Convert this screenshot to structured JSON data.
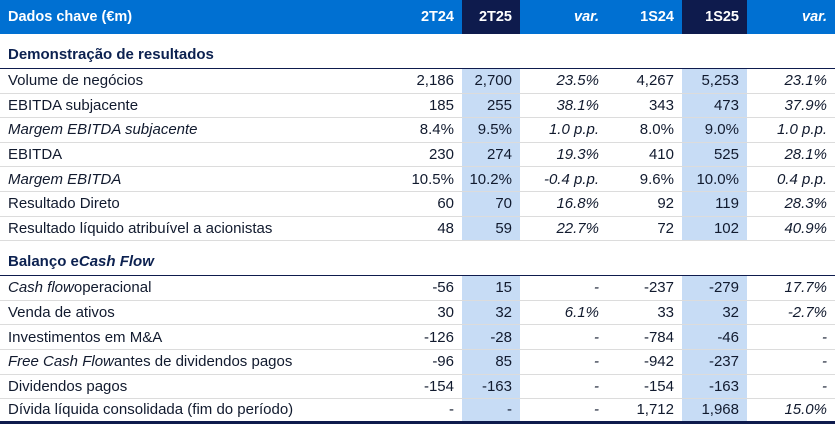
{
  "table": {
    "header": {
      "label": "Dados chave (€m)",
      "columns": [
        "2T24",
        "2T25",
        "var.",
        "1S24",
        "1S25",
        "var."
      ]
    },
    "sections": [
      {
        "title": [
          {
            "text": "Demonstração de resultados",
            "italic": false
          }
        ],
        "rows": [
          {
            "label": [
              {
                "text": "Volume de negócios",
                "italic": false
              }
            ],
            "values": [
              "2,186",
              "2,700",
              "23.5%",
              "4,267",
              "5,253",
              "23.1%"
            ]
          },
          {
            "label": [
              {
                "text": "EBITDA subjacente",
                "italic": false
              }
            ],
            "values": [
              "185",
              "255",
              "38.1%",
              "343",
              "473",
              "37.9%"
            ]
          },
          {
            "label": [
              {
                "text": "Margem EBITDA subjacente",
                "italic": true
              }
            ],
            "values": [
              "8.4%",
              "9.5%",
              "1.0 p.p.",
              "8.0%",
              "9.0%",
              "1.0 p.p."
            ]
          },
          {
            "label": [
              {
                "text": "EBITDA",
                "italic": false
              }
            ],
            "values": [
              "230",
              "274",
              "19.3%",
              "410",
              "525",
              "28.1%"
            ]
          },
          {
            "label": [
              {
                "text": "Margem EBITDA",
                "italic": true
              }
            ],
            "values": [
              "10.5%",
              "10.2%",
              "-0.4 p.p.",
              "9.6%",
              "10.0%",
              "0.4 p.p."
            ]
          },
          {
            "label": [
              {
                "text": "Resultado Direto",
                "italic": false
              }
            ],
            "values": [
              "60",
              "70",
              "16.8%",
              "92",
              "119",
              "28.3%"
            ]
          },
          {
            "label": [
              {
                "text": "Resultado líquido atribuível a acionistas",
                "italic": false
              }
            ],
            "values": [
              "48",
              "59",
              "22.7%",
              "72",
              "102",
              "40.9%"
            ]
          }
        ]
      },
      {
        "title": [
          {
            "text": "Balanço e ",
            "italic": false
          },
          {
            "text": "Cash Flow",
            "italic": true
          }
        ],
        "rows": [
          {
            "label": [
              {
                "text": "Cash flow",
                "italic": true
              },
              {
                "text": " operacional",
                "italic": false
              }
            ],
            "values": [
              "-56",
              "15",
              "-",
              "-237",
              "-279",
              "17.7%"
            ]
          },
          {
            "label": [
              {
                "text": "Venda de ativos",
                "italic": false
              }
            ],
            "values": [
              "30",
              "32",
              "6.1%",
              "33",
              "32",
              "-2.7%"
            ]
          },
          {
            "label": [
              {
                "text": "Investimentos em M&A",
                "italic": false
              }
            ],
            "values": [
              "-126",
              "-28",
              "-",
              "-784",
              "-46",
              "-"
            ]
          },
          {
            "label": [
              {
                "text": "Free Cash Flow",
                "italic": true
              },
              {
                "text": " antes de dividendos pagos",
                "italic": false
              }
            ],
            "values": [
              "-96",
              "85",
              "-",
              "-942",
              "-237",
              "-"
            ]
          },
          {
            "label": [
              {
                "text": "Dividendos pagos",
                "italic": false
              }
            ],
            "values": [
              "-154",
              "-163",
              "-",
              "-154",
              "-163",
              "-"
            ]
          },
          {
            "label": [
              {
                "text": "Dívida líquida consolidada (fim do período)",
                "italic": false
              }
            ],
            "values": [
              "-",
              "-",
              "-",
              "1,712",
              "1,968",
              "15.0%"
            ],
            "final": true
          }
        ]
      }
    ]
  },
  "colors": {
    "header_blue": "#0070D2",
    "dark_navy": "#0E1B4D",
    "highlight_blue": "#C7DCF5",
    "text": "#111A2E",
    "section_title": "#0C2150",
    "row_divider": "#DCDCDC"
  }
}
